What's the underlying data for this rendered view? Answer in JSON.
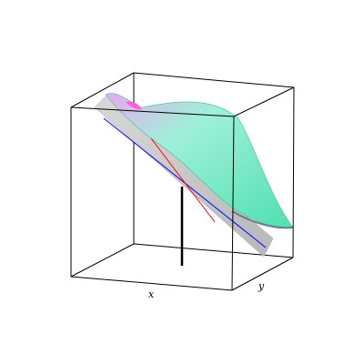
{
  "diagram": {
    "type": "3d-surface-plot",
    "axis_labels": {
      "x": "x",
      "y": "y"
    },
    "colors": {
      "background": "#ffffff",
      "box_edges": "#000000",
      "tangent_plane": "#c8c8c8",
      "surface_high": "#e9a8ef",
      "surface_mid": "#9ff0d8",
      "surface_low": "#4fe0b0",
      "surface_tip": "#ff5ed9",
      "line_x_direction": "#0000ff",
      "line_y_direction": "#ff0000",
      "normal_line": "#000000"
    },
    "elements": [
      "bounding-box",
      "tangent-plane",
      "surface",
      "line-x-direction",
      "line-y-direction",
      "normal-line"
    ]
  }
}
